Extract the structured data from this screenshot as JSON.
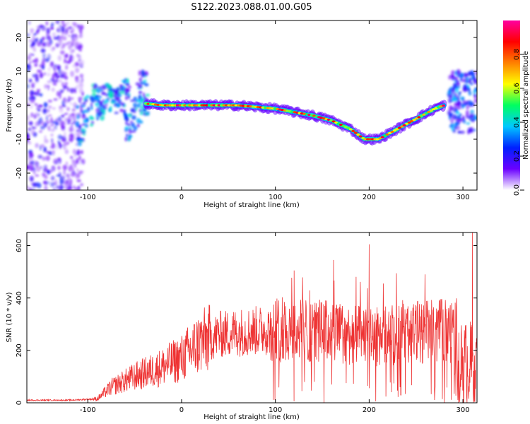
{
  "title": "S122.2023.088.01.00.G05",
  "chart_data": [
    {
      "type": "heatmap",
      "xlabel": "Height of straight line (km)",
      "ylabel": "Frequency (Hz)",
      "xlim": [
        -165,
        315
      ],
      "ylim": [
        -25,
        25
      ],
      "xticks": [
        -100,
        0,
        100,
        200,
        300
      ],
      "yticks": [
        -20,
        -10,
        0,
        10,
        20
      ],
      "colorbar": {
        "label": "Normalized spectral amplitude",
        "range": [
          0,
          1
        ],
        "ticks": [
          "0.0",
          "0.2",
          "0.4",
          "0.6",
          "0.8"
        ],
        "colormap": [
          "#ffffff",
          "#6a00ff",
          "#0020ff",
          "#00c8ff",
          "#00ff60",
          "#ffff00",
          "#ff8000",
          "#ff0000",
          "#ff00a0"
        ]
      },
      "ridge": {
        "x": [
          -38,
          -20,
          0,
          20,
          40,
          60,
          80,
          100,
          120,
          140,
          160,
          180,
          195,
          210,
          230,
          250,
          270,
          280
        ],
        "freq": [
          0.5,
          0.0,
          0.0,
          0.0,
          0.0,
          0.0,
          -0.5,
          -1,
          -2,
          -3,
          -4.5,
          -7,
          -10,
          -10,
          -7,
          -4,
          -1,
          0
        ]
      },
      "noise_band": {
        "x": [
          -165,
          -115
        ],
        "freq_range": [
          -25,
          25
        ]
      },
      "edge_band": {
        "x": [
          285,
          315
        ],
        "freq_range": [
          -8,
          10
        ]
      }
    },
    {
      "type": "line",
      "color": "#ee3333",
      "xlabel": "Height of straight line (km)",
      "ylabel": "SNR (10 * v/v)",
      "xlim": [
        -165,
        315
      ],
      "ylim": [
        0,
        650
      ],
      "xticks": [
        -100,
        0,
        100,
        200,
        300
      ],
      "yticks": [
        0,
        200,
        400,
        600
      ],
      "trend": {
        "x": [
          -165,
          -120,
          -90,
          -75,
          -50,
          -25,
          0,
          20,
          40,
          60,
          100,
          150,
          200,
          250,
          290,
          295,
          315
        ],
        "y": [
          10,
          10,
          15,
          60,
          100,
          130,
          170,
          230,
          260,
          270,
          280,
          275,
          250,
          270,
          275,
          150,
          150
        ]
      },
      "peaks": [
        {
          "x": 200,
          "y": 605
        },
        {
          "x": 162,
          "y": 545
        },
        {
          "x": 120,
          "y": 505
        },
        {
          "x": 310,
          "y": 650
        }
      ]
    }
  ]
}
